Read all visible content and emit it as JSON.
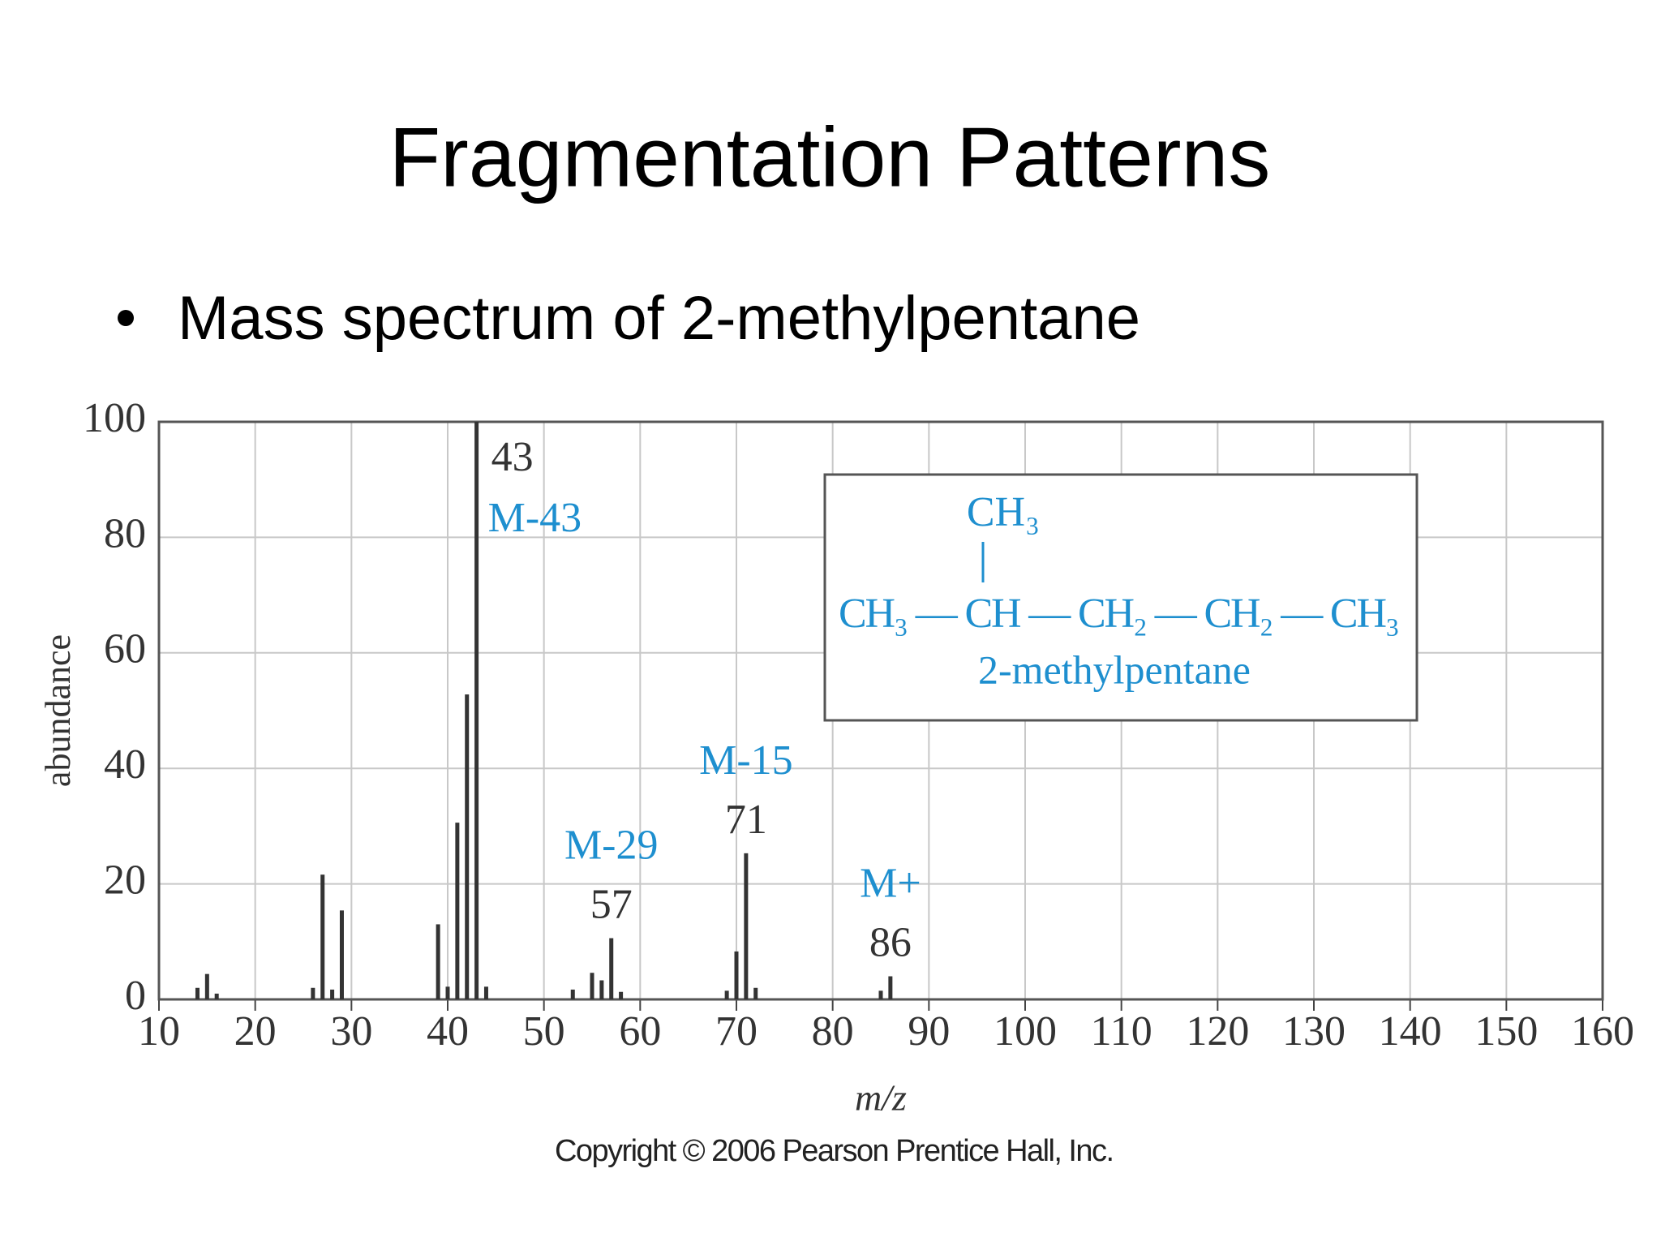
{
  "slide": {
    "title": "Fragmentation Patterns",
    "bullet": "Mass spectrum of 2-methylpentane"
  },
  "chart_data": {
    "type": "bar",
    "x": [
      14,
      15,
      16,
      26,
      27,
      28,
      29,
      39,
      40,
      41,
      42,
      43,
      44,
      53,
      55,
      56,
      57,
      58,
      69,
      70,
      71,
      72,
      85,
      86
    ],
    "values": [
      2,
      4.4,
      1,
      2,
      21.6,
      1.7,
      15.4,
      13,
      2.2,
      30.6,
      52.8,
      100,
      2.2,
      1.7,
      4.6,
      3.3,
      10.6,
      1.3,
      1.5,
      8.3,
      25.3,
      2,
      1.5,
      4
    ],
    "color": "#333333",
    "xlabel": "m/z",
    "ylabel": "abundance",
    "xlim": [
      10,
      160
    ],
    "xticks": [
      10,
      20,
      30,
      40,
      50,
      60,
      70,
      80,
      90,
      100,
      110,
      120,
      130,
      140,
      150,
      160
    ],
    "ylim": [
      0,
      100
    ],
    "yticks": [
      0,
      20,
      40,
      60,
      80,
      100
    ],
    "grid": true,
    "annotation_color": "#1e8fcf",
    "peak_labels": [
      {
        "mz": "43",
        "loss": "M-43"
      },
      {
        "mz": "57",
        "loss": "M-29"
      },
      {
        "mz": "71",
        "loss": "M-15"
      },
      {
        "mz": "86",
        "loss": "M+"
      }
    ],
    "structure": {
      "branch": "CH₃",
      "chain": "CH₃ — CH — CH₂ — CH₂ — CH₃",
      "name": "2-methylpentane"
    }
  },
  "footer": "Copyright © 2006 Pearson Prentice Hall, Inc."
}
